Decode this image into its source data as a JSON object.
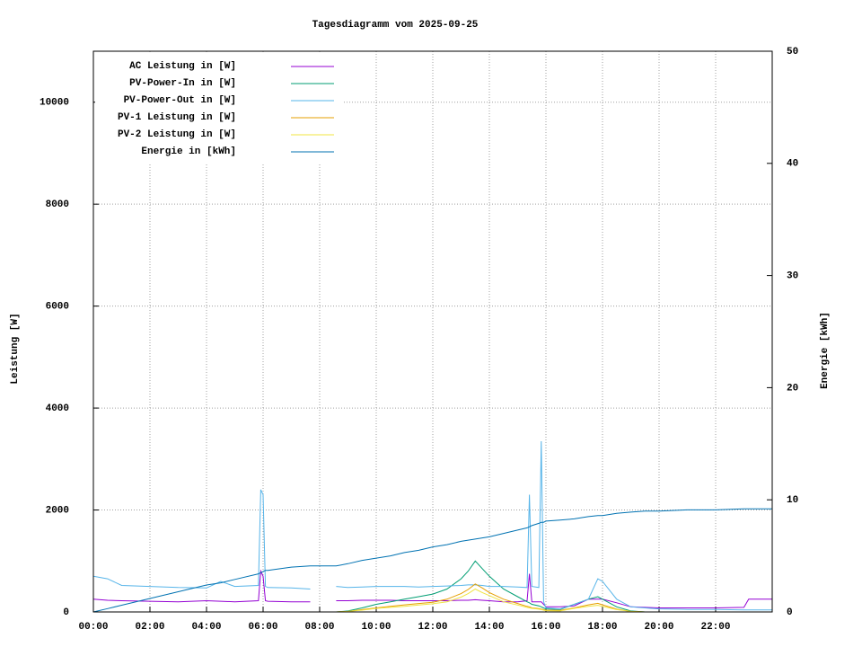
{
  "chart_data": {
    "type": "line",
    "title": "Tagesdiagramm vom 2025-09-25",
    "ylabel": "Leistung [W]",
    "y2label": "Energie [kWh]",
    "x": [
      "00:00",
      "00:30",
      "01:00",
      "02:00",
      "03:00",
      "04:00",
      "04:30",
      "05:00",
      "05:50",
      "05:55",
      "06:00",
      "06:05",
      "06:10",
      "07:00",
      "07:40",
      "07:45",
      "08:30",
      "08:35",
      "09:00",
      "09:30",
      "10:00",
      "10:30",
      "11:00",
      "11:30",
      "12:00",
      "12:30",
      "13:00",
      "13:15",
      "13:30",
      "13:45",
      "14:00",
      "14:30",
      "15:00",
      "15:20",
      "15:25",
      "15:30",
      "15:45",
      "15:50",
      "15:55",
      "16:00",
      "16:30",
      "17:00",
      "17:30",
      "17:50",
      "18:00",
      "18:30",
      "19:00",
      "19:30",
      "20:00",
      "21:00",
      "22:00",
      "23:00",
      "23:10",
      "23:59"
    ],
    "xlim": [
      "00:00",
      "24:00"
    ],
    "xticks": [
      "00:00",
      "02:00",
      "04:00",
      "06:00",
      "08:00",
      "10:00",
      "12:00",
      "14:00",
      "16:00",
      "18:00",
      "20:00",
      "22:00"
    ],
    "ylim": [
      0,
      11000
    ],
    "yticks": [
      0,
      2000,
      4000,
      6000,
      8000,
      10000
    ],
    "y2lim": [
      0,
      50
    ],
    "y2ticks": [
      0,
      10,
      20,
      30,
      40,
      50
    ],
    "grid": true,
    "legend": "upper left",
    "series": [
      {
        "name": "AC Leistung in [W]",
        "color": "#9400d3",
        "values": [
          250,
          230,
          220,
          210,
          200,
          220,
          210,
          200,
          220,
          800,
          700,
          220,
          210,
          200,
          200,
          null,
          null,
          220,
          220,
          230,
          230,
          230,
          220,
          220,
          220,
          220,
          230,
          230,
          240,
          230,
          220,
          200,
          200,
          220,
          750,
          200,
          200,
          200,
          150,
          100,
          100,
          120,
          250,
          250,
          250,
          180,
          100,
          90,
          80,
          80,
          80,
          90,
          250,
          250
        ]
      },
      {
        "name": "PV-Power-In in [W]",
        "color": "#009e73",
        "values": [
          null,
          null,
          null,
          null,
          null,
          null,
          null,
          null,
          null,
          null,
          null,
          null,
          null,
          null,
          null,
          null,
          0,
          0,
          20,
          80,
          150,
          200,
          250,
          300,
          350,
          450,
          650,
          800,
          1000,
          850,
          700,
          450,
          300,
          200,
          180,
          150,
          120,
          100,
          80,
          60,
          50,
          150,
          250,
          300,
          250,
          100,
          20,
          0,
          null,
          null,
          null,
          null,
          null,
          null
        ]
      },
      {
        "name": "PV-Power-Out in [W]",
        "color": "#56b4e9",
        "values": [
          700,
          650,
          520,
          500,
          480,
          470,
          600,
          500,
          520,
          2400,
          2300,
          500,
          480,
          470,
          450,
          null,
          null,
          500,
          480,
          490,
          500,
          500,
          500,
          490,
          500,
          510,
          520,
          530,
          530,
          520,
          500,
          500,
          490,
          480,
          2300,
          500,
          480,
          3350,
          200,
          80,
          60,
          150,
          250,
          650,
          600,
          250,
          100,
          80,
          60,
          50,
          50,
          40,
          40,
          40
        ]
      },
      {
        "name": "PV-1 Leistung in [W]",
        "color": "#e69f00",
        "values": [
          null,
          null,
          null,
          null,
          null,
          null,
          null,
          null,
          null,
          null,
          null,
          null,
          null,
          null,
          null,
          null,
          0,
          0,
          10,
          45,
          80,
          110,
          140,
          165,
          190,
          250,
          360,
          440,
          550,
          470,
          380,
          250,
          165,
          110,
          100,
          80,
          65,
          55,
          45,
          35,
          30,
          80,
          140,
          170,
          140,
          55,
          10,
          0,
          null,
          null,
          null,
          null,
          null,
          null
        ]
      },
      {
        "name": "PV-2 Leistung in [W]",
        "color": "#f0e442",
        "values": [
          null,
          null,
          null,
          null,
          null,
          null,
          null,
          null,
          null,
          null,
          null,
          null,
          null,
          null,
          null,
          null,
          0,
          0,
          10,
          35,
          70,
          90,
          110,
          135,
          160,
          200,
          290,
          360,
          450,
          380,
          320,
          200,
          135,
          90,
          80,
          70,
          55,
          45,
          35,
          25,
          20,
          70,
          110,
          130,
          110,
          45,
          10,
          0,
          null,
          null,
          null,
          null,
          null,
          null
        ]
      },
      {
        "name": "Energie in [kWh]",
        "color": "#0072b2",
        "axis": "y2",
        "values": [
          0,
          0.3,
          0.6,
          1.2,
          1.8,
          2.4,
          2.6,
          2.9,
          3.4,
          3.5,
          3.6,
          3.7,
          3.7,
          4.0,
          4.1,
          4.1,
          4.1,
          4.1,
          4.3,
          4.6,
          4.8,
          5.0,
          5.3,
          5.5,
          5.8,
          6.0,
          6.3,
          6.4,
          6.5,
          6.6,
          6.7,
          7.0,
          7.3,
          7.5,
          7.6,
          7.7,
          7.9,
          8.0,
          8.0,
          8.1,
          8.2,
          8.3,
          8.5,
          8.6,
          8.6,
          8.8,
          8.9,
          9.0,
          9.0,
          9.1,
          9.1,
          9.2,
          9.2,
          9.2
        ]
      }
    ]
  }
}
